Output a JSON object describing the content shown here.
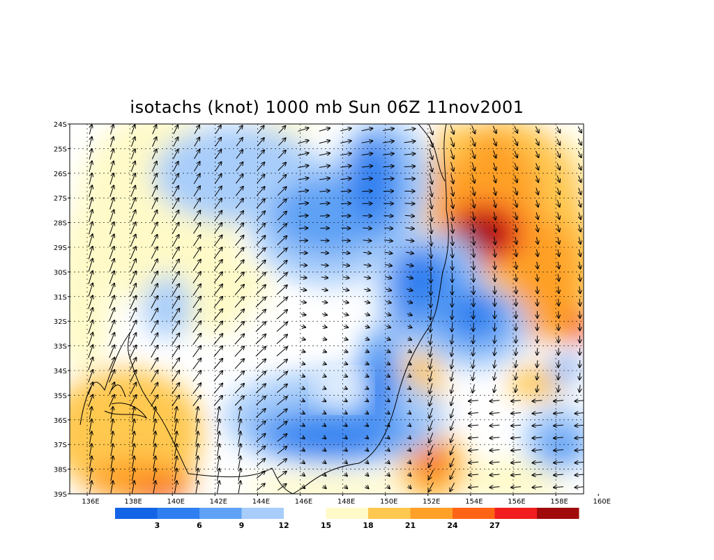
{
  "title": "isotachs (knot) 1000 mb Sun 06Z 11nov2001",
  "axes": {
    "lat_labels": [
      "24S",
      "25S",
      "26S",
      "27S",
      "28S",
      "29S",
      "30S",
      "31S",
      "32S",
      "33S",
      "34S",
      "35S",
      "36S",
      "37S",
      "38S",
      "39S"
    ],
    "lon_labels": [
      "136E",
      "138E",
      "140E",
      "142E",
      "144E",
      "146E",
      "148E",
      "150E",
      "152E",
      "154E",
      "156E",
      "158E",
      "160E"
    ]
  },
  "colorbar": {
    "colors": [
      "#1464e6",
      "#2f7ff0",
      "#5fa2f5",
      "#a8cdfa",
      "#ffffff",
      "#fffac8",
      "#ffc850",
      "#ffa028",
      "#ff6414",
      "#f01e1e",
      "#a00a0a"
    ],
    "labels": [
      "3",
      "6",
      "9",
      "12",
      "15",
      "18",
      "21",
      "24",
      "27"
    ]
  },
  "colors": {
    "coastline": "#000000",
    "grid": "#000000",
    "vector": "#000000"
  }
}
